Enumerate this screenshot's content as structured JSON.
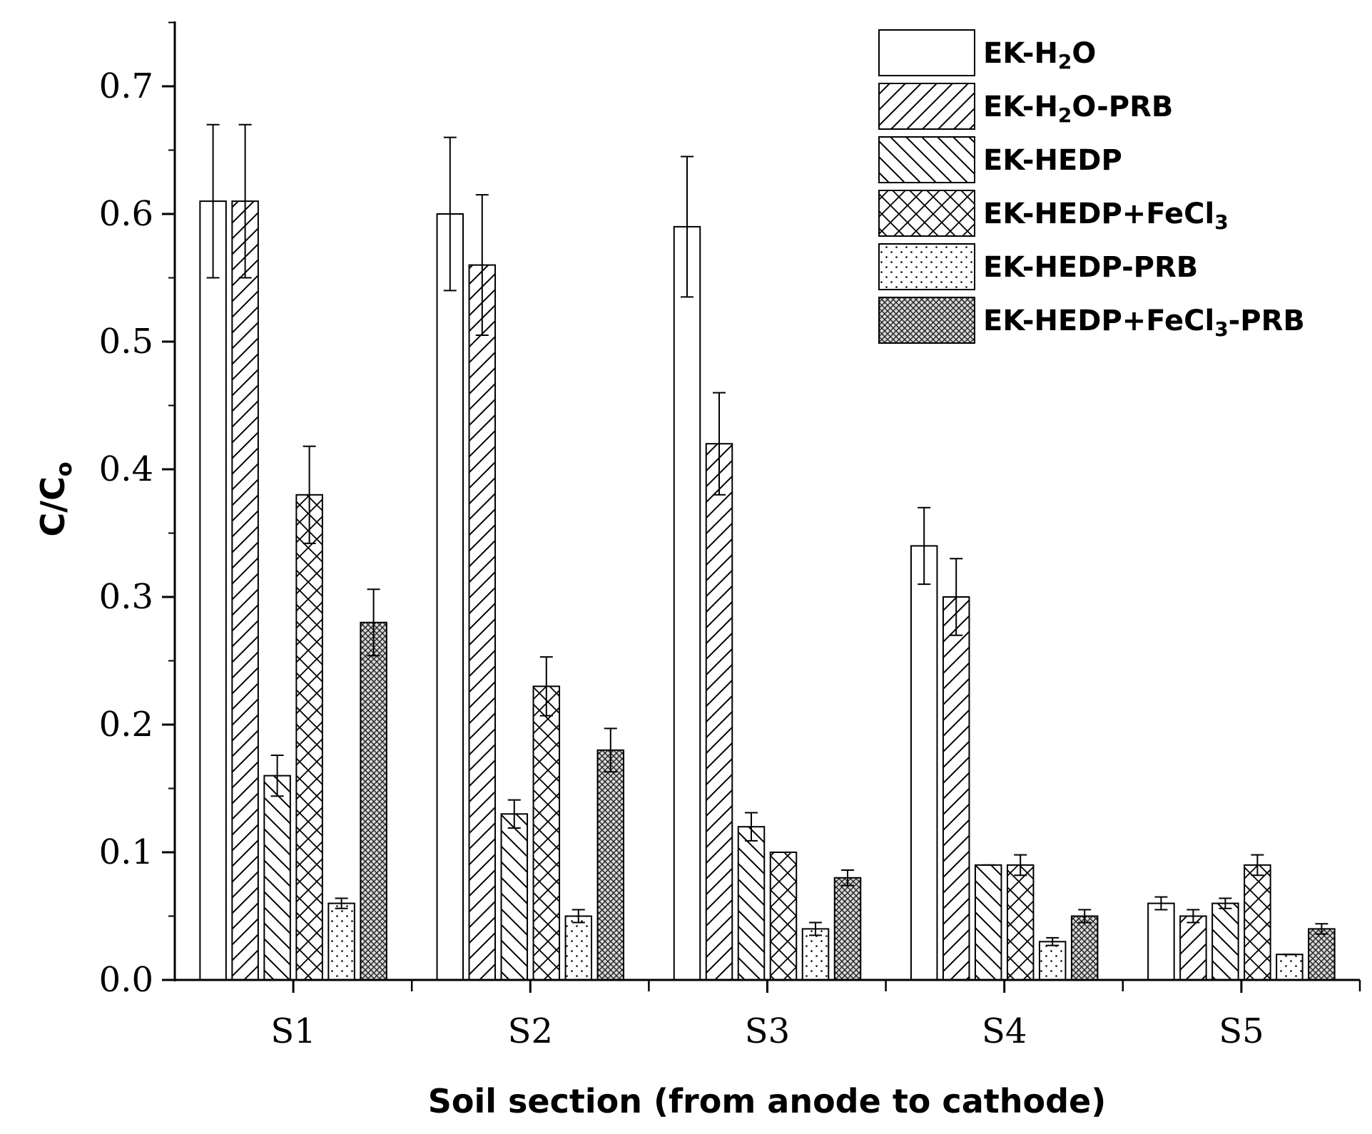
{
  "chart_data": {
    "type": "bar",
    "title": "",
    "xlabel": "Soil section (from anode to cathode)",
    "ylabel": {
      "main": "C/C",
      "sub": "o"
    },
    "ylim": [
      0,
      0.75
    ],
    "yticks": [
      "0.0",
      "0.1",
      "0.2",
      "0.3",
      "0.4",
      "0.5",
      "0.6",
      "0.7"
    ],
    "categories": [
      "S1",
      "S2",
      "S3",
      "S4",
      "S5"
    ],
    "legend_position": "top-right",
    "series": [
      {
        "name": "EK-H2O",
        "label_parts": [
          {
            "t": "EK-H"
          },
          {
            "t": "2",
            "sub": true
          },
          {
            "t": "O"
          }
        ],
        "pattern": "none",
        "values": [
          0.61,
          0.6,
          0.59,
          0.34,
          0.06
        ],
        "errors": [
          0.06,
          0.06,
          0.055,
          0.03,
          0.005
        ]
      },
      {
        "name": "EK-H2O-PRB",
        "label_parts": [
          {
            "t": "EK-H"
          },
          {
            "t": "2",
            "sub": true
          },
          {
            "t": "O-PRB"
          }
        ],
        "pattern": "forward-hatch",
        "values": [
          0.61,
          0.56,
          0.42,
          0.3,
          0.05
        ],
        "errors": [
          0.06,
          0.055,
          0.04,
          0.03,
          0.005
        ]
      },
      {
        "name": "EK-HEDP",
        "label_parts": [
          {
            "t": "EK-HEDP"
          }
        ],
        "pattern": "back-hatch",
        "values": [
          0.16,
          0.13,
          0.12,
          0.09,
          0.06
        ],
        "errors": [
          0.016,
          0.011,
          0.011,
          0.0,
          0.004
        ]
      },
      {
        "name": "EK-HEDP+FeCl3",
        "label_parts": [
          {
            "t": "EK-HEDP+FeCl"
          },
          {
            "t": "3",
            "sub": true
          }
        ],
        "pattern": "cross-hatch",
        "values": [
          0.38,
          0.23,
          0.1,
          0.09,
          0.09
        ],
        "errors": [
          0.038,
          0.023,
          0.0,
          0.008,
          0.008
        ]
      },
      {
        "name": "EK-HEDP-PRB",
        "label_parts": [
          {
            "t": "EK-HEDP-PRB"
          }
        ],
        "pattern": "dots",
        "values": [
          0.06,
          0.05,
          0.04,
          0.03,
          0.02
        ],
        "errors": [
          0.004,
          0.005,
          0.005,
          0.003,
          0.0
        ]
      },
      {
        "name": "EK-HEDP+FeCl3-PRB",
        "label_parts": [
          {
            "t": "EK-HEDP+FeCl"
          },
          {
            "t": "3",
            "sub": true
          },
          {
            "t": "-PRB"
          }
        ],
        "pattern": "dense-cross",
        "values": [
          0.28,
          0.18,
          0.08,
          0.05,
          0.04
        ],
        "errors": [
          0.026,
          0.017,
          0.006,
          0.005,
          0.004
        ]
      }
    ]
  }
}
